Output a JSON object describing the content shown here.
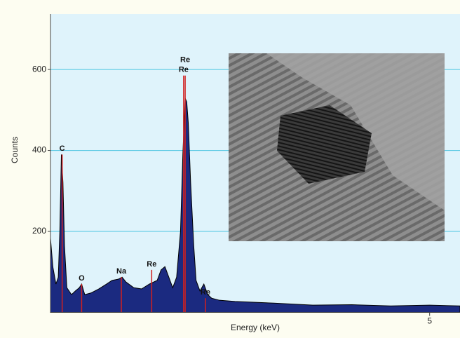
{
  "chart_data": {
    "type": "area",
    "x_label": "Energy (keV)",
    "y_label": "Counts",
    "x": [
      0.13,
      0.16,
      0.2,
      0.23,
      0.25,
      0.27,
      0.29,
      0.31,
      0.34,
      0.4,
      0.45,
      0.5,
      0.53,
      0.57,
      0.65,
      0.75,
      0.85,
      0.92,
      1.0,
      1.05,
      1.1,
      1.2,
      1.3,
      1.4,
      1.5,
      1.55,
      1.6,
      1.65,
      1.7,
      1.75,
      1.8,
      1.83,
      1.86,
      1.88,
      1.9,
      1.93,
      1.97,
      2.0,
      2.05,
      2.1,
      2.15,
      2.2,
      2.3,
      2.5,
      3.0,
      3.5,
      4.0,
      4.5,
      5.0,
      5.39
    ],
    "series": [
      {
        "color": "#1b2a80",
        "values": [
          183,
          113,
          70,
          87,
          200,
          390,
          321,
          165,
          61,
          44,
          53,
          61,
          70,
          44,
          48,
          58,
          70,
          79,
          82,
          87,
          75,
          61,
          58,
          70,
          79,
          105,
          113,
          87,
          61,
          87,
          200,
          390,
          529,
          520,
          468,
          321,
          165,
          79,
          53,
          70,
          44,
          35,
          30,
          27,
          23,
          18,
          19,
          16,
          18,
          16
        ]
      }
    ],
    "markers": [
      {
        "label": "C",
        "energy": 0.28,
        "counts": 390
      },
      {
        "label": "O",
        "energy": 0.53,
        "counts": 70
      },
      {
        "label": "Na",
        "energy": 1.04,
        "counts": 87
      },
      {
        "label": "Re",
        "energy": 1.43,
        "counts": 105
      },
      {
        "label": "Re",
        "energy": 1.84,
        "counts": 585
      },
      {
        "label": "Re",
        "energy": 1.86,
        "counts": 585
      },
      {
        "label": "Re",
        "energy": 2.12,
        "counts": 35
      }
    ],
    "marker_color": "#d02020",
    "xlim": [
      0.13,
      5.39
    ],
    "ylim": [
      0,
      737
    ],
    "xticks": [
      5
    ],
    "yticks": [
      200,
      400,
      600
    ],
    "grid": true
  }
}
